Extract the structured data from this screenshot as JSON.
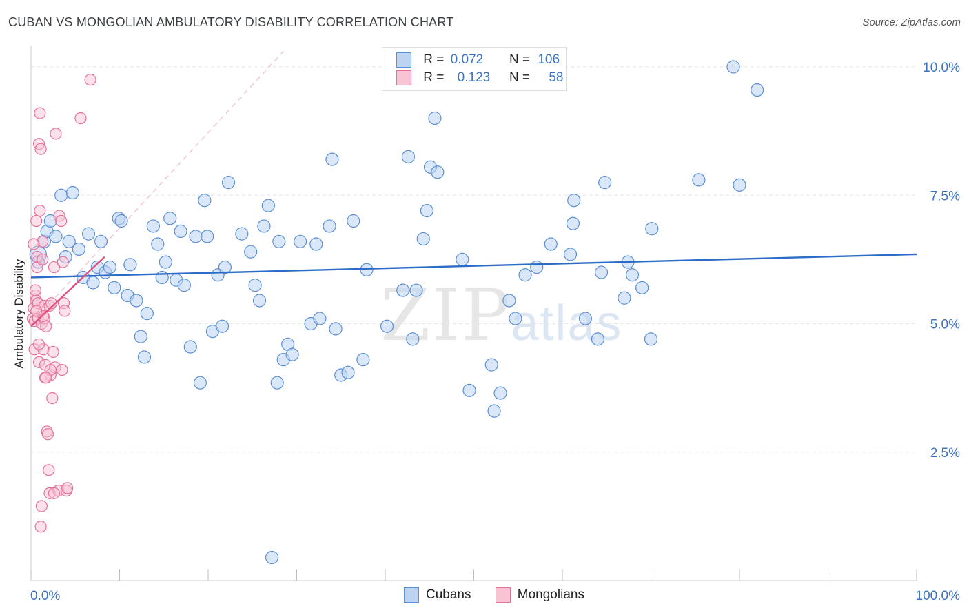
{
  "title": "CUBAN VS MONGOLIAN AMBULATORY DISABILITY CORRELATION CHART",
  "source": "Source: ZipAtlas.com",
  "watermark": {
    "zip": "ZIP",
    "atlas": "atlas"
  },
  "colors": {
    "cubans": "#5b8fd6",
    "cubans_fill": "#bcd3f2",
    "mongolians": "#e76f98",
    "mongolians_fill": "#f8c4d4",
    "trend_blue": "#2b6cc7",
    "trend_pink": "#e0517f"
  },
  "legend": {
    "rows": [
      {
        "r_label": "R =",
        "r_value": "0.072",
        "n_label": "N =",
        "n_value": "106"
      },
      {
        "r_label": "R =",
        "r_value": "0.123",
        "n_label": "N =",
        "n_value": "58"
      }
    ]
  },
  "chart_data": {
    "type": "scatter",
    "title": "CUBAN VS MONGOLIAN AMBULATORY DISABILITY CORRELATION CHART",
    "xlabel": "",
    "ylabel": "Ambulatory Disability",
    "xlim": [
      0,
      100
    ],
    "ylim": [
      0,
      10.5
    ],
    "x_tick_labels": [
      "0.0%",
      "100.0%"
    ],
    "y_ticks": [
      2.5,
      5.0,
      7.5,
      10.0
    ],
    "y_tick_labels": [
      "2.5%",
      "5.0%",
      "7.5%",
      "10.0%"
    ],
    "legend": [
      "Cubans",
      "Mongolians"
    ],
    "series": [
      {
        "name": "Cubans",
        "trend": {
          "x": [
            0,
            100
          ],
          "y": [
            5.9,
            6.35
          ]
        },
        "points": [
          [
            0.8,
            6.35
          ],
          [
            0.8,
            6.2
          ],
          [
            1.5,
            6.6
          ],
          [
            1.8,
            6.8
          ],
          [
            2.2,
            7.0
          ],
          [
            2.8,
            6.7
          ],
          [
            3.4,
            7.5
          ],
          [
            3.9,
            6.3
          ],
          [
            4.3,
            6.6
          ],
          [
            4.7,
            7.55
          ],
          [
            5.4,
            6.45
          ],
          [
            5.9,
            5.9
          ],
          [
            6.5,
            6.75
          ],
          [
            7.0,
            5.8
          ],
          [
            7.5,
            6.1
          ],
          [
            7.9,
            6.6
          ],
          [
            8.4,
            6.0
          ],
          [
            8.9,
            6.1
          ],
          [
            9.4,
            5.7
          ],
          [
            9.9,
            7.05
          ],
          [
            10.2,
            7.0
          ],
          [
            10.9,
            5.55
          ],
          [
            11.2,
            6.15
          ],
          [
            11.9,
            5.45
          ],
          [
            12.4,
            4.75
          ],
          [
            12.8,
            4.35
          ],
          [
            13.1,
            5.2
          ],
          [
            13.8,
            6.9
          ],
          [
            14.3,
            6.55
          ],
          [
            14.8,
            5.9
          ],
          [
            15.2,
            6.2
          ],
          [
            15.7,
            7.05
          ],
          [
            16.4,
            5.85
          ],
          [
            16.9,
            6.8
          ],
          [
            17.3,
            5.75
          ],
          [
            18.0,
            4.55
          ],
          [
            18.6,
            6.7
          ],
          [
            19.1,
            3.85
          ],
          [
            19.6,
            7.4
          ],
          [
            19.9,
            6.7
          ],
          [
            20.5,
            4.85
          ],
          [
            21.1,
            5.95
          ],
          [
            21.6,
            4.95
          ],
          [
            21.9,
            6.1
          ],
          [
            22.3,
            7.75
          ],
          [
            23.8,
            6.75
          ],
          [
            24.8,
            6.4
          ],
          [
            25.3,
            5.75
          ],
          [
            25.8,
            5.45
          ],
          [
            26.3,
            6.9
          ],
          [
            26.8,
            7.3
          ],
          [
            27.2,
            0.45
          ],
          [
            27.8,
            3.85
          ],
          [
            28.0,
            6.6
          ],
          [
            28.5,
            4.3
          ],
          [
            29.0,
            4.6
          ],
          [
            29.5,
            4.4
          ],
          [
            30.4,
            6.6
          ],
          [
            31.6,
            5.0
          ],
          [
            32.2,
            6.55
          ],
          [
            32.6,
            5.1
          ],
          [
            33.7,
            6.9
          ],
          [
            34.0,
            8.2
          ],
          [
            34.4,
            4.9
          ],
          [
            35.0,
            4.0
          ],
          [
            35.8,
            4.05
          ],
          [
            36.4,
            7.0
          ],
          [
            37.5,
            4.3
          ],
          [
            37.9,
            6.05
          ],
          [
            40.2,
            4.95
          ],
          [
            42.0,
            5.65
          ],
          [
            42.6,
            8.25
          ],
          [
            43.1,
            4.7
          ],
          [
            43.5,
            5.65
          ],
          [
            44.3,
            6.65
          ],
          [
            44.7,
            7.2
          ],
          [
            45.1,
            8.05
          ],
          [
            45.6,
            9.0
          ],
          [
            45.9,
            7.95
          ],
          [
            48.7,
            6.25
          ],
          [
            49.5,
            3.7
          ],
          [
            52.0,
            4.2
          ],
          [
            52.3,
            3.3
          ],
          [
            53.0,
            3.65
          ],
          [
            54.0,
            5.45
          ],
          [
            54.7,
            5.1
          ],
          [
            55.8,
            5.95
          ],
          [
            57.1,
            6.1
          ],
          [
            58.7,
            6.55
          ],
          [
            60.9,
            6.35
          ],
          [
            61.2,
            6.95
          ],
          [
            61.3,
            7.4
          ],
          [
            62.6,
            5.1
          ],
          [
            64.0,
            4.7
          ],
          [
            64.4,
            6.0
          ],
          [
            64.8,
            7.75
          ],
          [
            67.0,
            5.5
          ],
          [
            67.4,
            6.2
          ],
          [
            67.9,
            5.95
          ],
          [
            69.0,
            5.7
          ],
          [
            70.0,
            4.7
          ],
          [
            70.1,
            6.85
          ],
          [
            75.4,
            7.8
          ],
          [
            79.3,
            10.0
          ],
          [
            80.0,
            7.7
          ],
          [
            82.0,
            9.55
          ]
        ]
      },
      {
        "name": "Mongolians",
        "trend": {
          "x": [
            0,
            8.3
          ],
          "y": [
            4.95,
            6.3
          ]
        },
        "points": [
          [
            0.2,
            5.1
          ],
          [
            0.3,
            5.3
          ],
          [
            0.4,
            5.05
          ],
          [
            0.4,
            4.5
          ],
          [
            0.5,
            5.55
          ],
          [
            0.6,
            5.45
          ],
          [
            0.6,
            7.0
          ],
          [
            0.7,
            6.1
          ],
          [
            0.7,
            6.3
          ],
          [
            0.8,
            5.1
          ],
          [
            0.8,
            5.4
          ],
          [
            0.9,
            4.25
          ],
          [
            0.9,
            8.5
          ],
          [
            1.0,
            7.2
          ],
          [
            1.0,
            9.1
          ],
          [
            1.1,
            8.4
          ],
          [
            1.2,
            5.0
          ],
          [
            1.2,
            1.45
          ],
          [
            1.3,
            6.25
          ],
          [
            1.3,
            6.6
          ],
          [
            1.4,
            4.5
          ],
          [
            1.5,
            5.35
          ],
          [
            1.5,
            5.1
          ],
          [
            1.6,
            4.2
          ],
          [
            1.6,
            3.95
          ],
          [
            1.7,
            4.95
          ],
          [
            1.8,
            2.9
          ],
          [
            1.9,
            2.85
          ],
          [
            2.0,
            2.15
          ],
          [
            2.1,
            5.35
          ],
          [
            2.1,
            1.7
          ],
          [
            2.2,
            4.0
          ],
          [
            2.3,
            5.4
          ],
          [
            2.4,
            3.55
          ],
          [
            2.5,
            4.45
          ],
          [
            2.6,
            6.1
          ],
          [
            2.7,
            4.15
          ],
          [
            2.8,
            8.7
          ],
          [
            3.1,
            1.75
          ],
          [
            3.2,
            7.1
          ],
          [
            3.4,
            7.0
          ],
          [
            3.5,
            4.1
          ],
          [
            3.6,
            6.2
          ],
          [
            3.7,
            5.4
          ],
          [
            3.8,
            5.25
          ],
          [
            4.0,
            1.75
          ],
          [
            4.1,
            1.8
          ],
          [
            5.6,
            9.0
          ],
          [
            6.7,
            9.75
          ],
          [
            0.5,
            5.65
          ],
          [
            0.9,
            4.6
          ],
          [
            1.1,
            1.05
          ],
          [
            1.4,
            5.15
          ],
          [
            2.2,
            4.1
          ],
          [
            0.3,
            6.55
          ],
          [
            0.6,
            5.25
          ],
          [
            1.7,
            3.95
          ],
          [
            2.6,
            1.7
          ]
        ]
      }
    ]
  }
}
